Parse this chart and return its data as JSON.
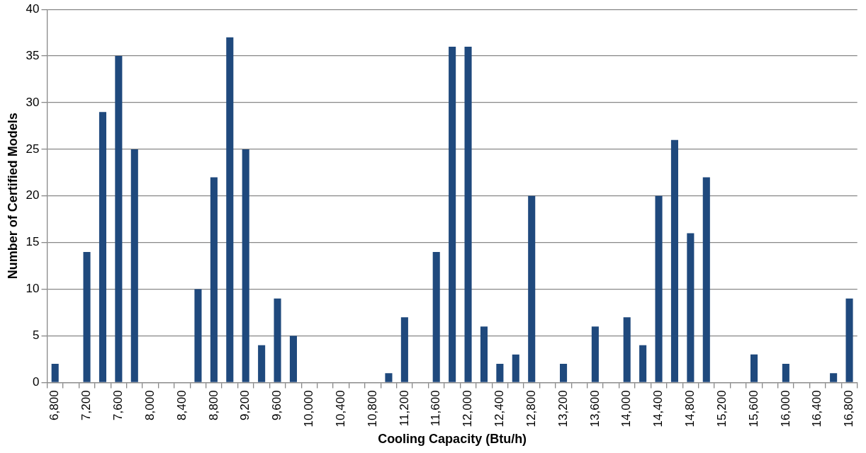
{
  "chart_data": {
    "type": "bar",
    "xlabel": "Cooling Capacity (Btu/h)",
    "ylabel": "Number of Certified Models",
    "categories": [
      "6,800",
      null,
      "7,200",
      null,
      "7,600",
      null,
      "8,000",
      null,
      "8,400",
      null,
      "8,800",
      null,
      "9,200",
      null,
      "9,600",
      null,
      "10,000",
      null,
      "10,400",
      null,
      "10,800",
      null,
      "11,200",
      null,
      "11,600",
      null,
      "12,000",
      null,
      "12,400",
      null,
      "12,800",
      null,
      "13,200",
      null,
      "13,600",
      null,
      "14,000",
      null,
      "14,400",
      null,
      "14,800",
      null,
      "15,200",
      null,
      "15,600",
      null,
      "16,000",
      null,
      "16,400",
      null,
      "16,800"
    ],
    "values": [
      2,
      0,
      14,
      29,
      35,
      25,
      0,
      0,
      0,
      10,
      22,
      37,
      25,
      4,
      9,
      5,
      0,
      0,
      0,
      0,
      0,
      1,
      7,
      0,
      14,
      36,
      36,
      6,
      2,
      3,
      20,
      0,
      2,
      0,
      6,
      0,
      7,
      4,
      20,
      26,
      16,
      22,
      0,
      0,
      3,
      0,
      2,
      0,
      0,
      1,
      9
    ],
    "color": "#1f497d",
    "ylim": [
      0,
      40
    ],
    "yticks": [
      0,
      5,
      10,
      15,
      20,
      25,
      30,
      35,
      40
    ],
    "grid": "y",
    "legend": false
  }
}
